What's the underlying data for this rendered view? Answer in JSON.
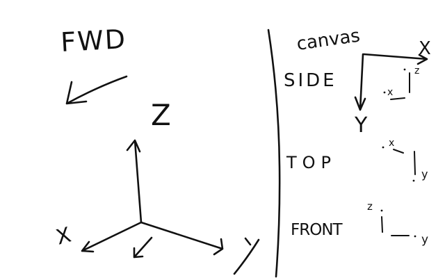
{
  "left_panel": {
    "fwd_label": "FWD",
    "z_label": "Z",
    "axes": {
      "up_label": "",
      "left_label": "X",
      "right_label": "Y"
    }
  },
  "right_panel": {
    "canvas_label": "canvas",
    "canvas_axis_x": "X",
    "canvas_axis_y": "Y",
    "views": [
      {
        "name": "SIDE",
        "h_axis": "x",
        "v_axis": "z"
      },
      {
        "name": "TOP",
        "h_axis": "x",
        "v_axis": "y"
      },
      {
        "name": "FRONT",
        "h_axis": "z",
        "v_axis": "y"
      }
    ]
  }
}
